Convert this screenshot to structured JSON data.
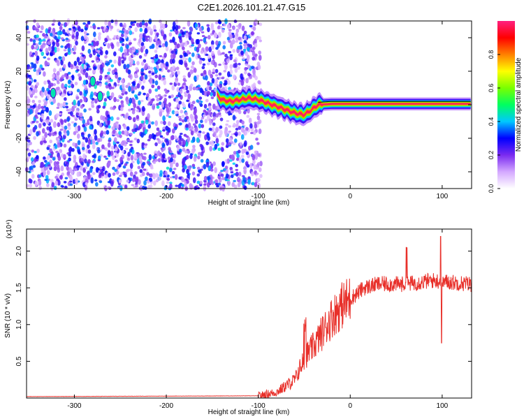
{
  "title": "C2E1.2026.101.21.47.G15",
  "chart_data": [
    {
      "type": "heatmap",
      "name": "spectrogram",
      "xlabel": "Height of straight line (km)",
      "ylabel": "Frequency (Hz)",
      "xlim": [
        -352,
        132
      ],
      "ylim": [
        -50,
        50
      ],
      "xticks": [
        -300,
        -200,
        -100,
        0,
        100
      ],
      "yticks": [
        -40,
        -20,
        0,
        20,
        40
      ],
      "colorbar": {
        "label": "Normalized spectral amplitude",
        "range": [
          0,
          1
        ],
        "ticks": [
          0.0,
          0.2,
          0.4,
          0.6,
          0.8
        ],
        "colormap": [
          "#ffffff",
          "#d4a8ff",
          "#7a2bf0",
          "#0000ff",
          "#00c8ff",
          "#00ff60",
          "#7aff00",
          "#ffff00",
          "#ff8000",
          "#ff0000",
          "#ff2080"
        ]
      },
      "ridge": {
        "description_points": [
          [
            -145,
            6
          ],
          [
            -140,
            3
          ],
          [
            -130,
            2
          ],
          [
            -110,
            4
          ],
          [
            -100,
            3
          ],
          [
            -90,
            1
          ],
          [
            -80,
            -1
          ],
          [
            -70,
            -3
          ],
          [
            -60,
            -5
          ],
          [
            -50,
            -6
          ],
          [
            -42,
            -3
          ],
          [
            -35,
            0
          ],
          [
            -20,
            0.5
          ],
          [
            0,
            0.5
          ],
          [
            50,
            0.5
          ],
          [
            132,
            0.5
          ]
        ],
        "amplitude": 0.95
      },
      "noise_region_xmax": -105
    },
    {
      "type": "line",
      "name": "snr",
      "xlabel": "Height of straight line (km)",
      "ylabel": "SNR (10 * v/v)",
      "multiplier": "(x10⁴)",
      "xlim": [
        -352,
        132
      ],
      "ylim": [
        0,
        2.3
      ],
      "xticks": [
        -300,
        -200,
        -100,
        0,
        100
      ],
      "yticks": [
        0.5,
        1.0,
        1.5,
        2.0
      ],
      "color": "#e8302a",
      "envelope": [
        [
          -352,
          0.02
        ],
        [
          -100,
          0.03
        ],
        [
          -80,
          0.08
        ],
        [
          -60,
          0.25
        ],
        [
          -50,
          0.55
        ],
        [
          -40,
          0.7
        ],
        [
          -30,
          0.9
        ],
        [
          -20,
          1.1
        ],
        [
          -10,
          1.25
        ],
        [
          0,
          1.35
        ],
        [
          15,
          1.5
        ],
        [
          30,
          1.55
        ],
        [
          60,
          1.55
        ],
        [
          90,
          1.6
        ],
        [
          132,
          1.55
        ]
      ]
    }
  ]
}
